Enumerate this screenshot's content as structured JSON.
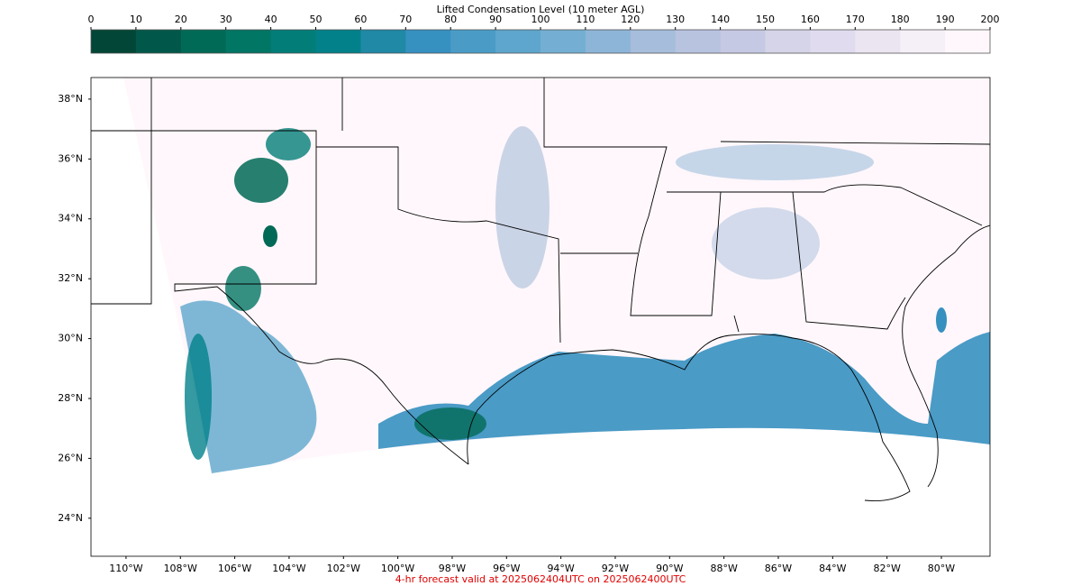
{
  "colorbar": {
    "title": "Lifted Condensation Level (10 meter AGL)",
    "range": [
      0,
      200
    ],
    "ticks": [
      0,
      10,
      20,
      30,
      40,
      50,
      60,
      70,
      80,
      90,
      100,
      110,
      120,
      130,
      140,
      150,
      160,
      170,
      180,
      190,
      200
    ],
    "colors": [
      "#014636",
      "#01584a",
      "#016a56",
      "#027664",
      "#027d78",
      "#02818a",
      "#1f89a6",
      "#3690c0",
      "#4a9cc7",
      "#5ea6cd",
      "#74afd3",
      "#8db5d8",
      "#a6bddb",
      "#b7c3df",
      "#c6c9e3",
      "#d5d4e8",
      "#e0dbee",
      "#ebe4f1",
      "#f5eff7",
      "#fff7fb"
    ]
  },
  "map": {
    "xlim": [
      -111.29,
      -78.21
    ],
    "ylim": [
      22.73,
      38.72
    ],
    "xticks": [
      {
        "value": -110,
        "label": "110°W"
      },
      {
        "value": -108,
        "label": "108°W"
      },
      {
        "value": -106,
        "label": "106°W"
      },
      {
        "value": -104,
        "label": "104°W"
      },
      {
        "value": -102,
        "label": "102°W"
      },
      {
        "value": -100,
        "label": "100°W"
      },
      {
        "value": -98,
        "label": "98°W"
      },
      {
        "value": -96,
        "label": "96°W"
      },
      {
        "value": -94,
        "label": "94°W"
      },
      {
        "value": -92,
        "label": "92°W"
      },
      {
        "value": -90,
        "label": "90°W"
      },
      {
        "value": -88,
        "label": "88°W"
      },
      {
        "value": -86,
        "label": "86°W"
      },
      {
        "value": -84,
        "label": "84°W"
      },
      {
        "value": -82,
        "label": "82°W"
      },
      {
        "value": -80,
        "label": "80°W"
      }
    ],
    "yticks": [
      {
        "value": 24,
        "label": "24°N"
      },
      {
        "value": 26,
        "label": "26°N"
      },
      {
        "value": 28,
        "label": "28°N"
      },
      {
        "value": 30,
        "label": "30°N"
      },
      {
        "value": 32,
        "label": "32°N"
      },
      {
        "value": 34,
        "label": "34°N"
      },
      {
        "value": 36,
        "label": "36°N"
      },
      {
        "value": 38,
        "label": "38°N"
      }
    ]
  },
  "footer": "4-hr forecast valid at 2025062404UTC on 2025062400UTC"
}
